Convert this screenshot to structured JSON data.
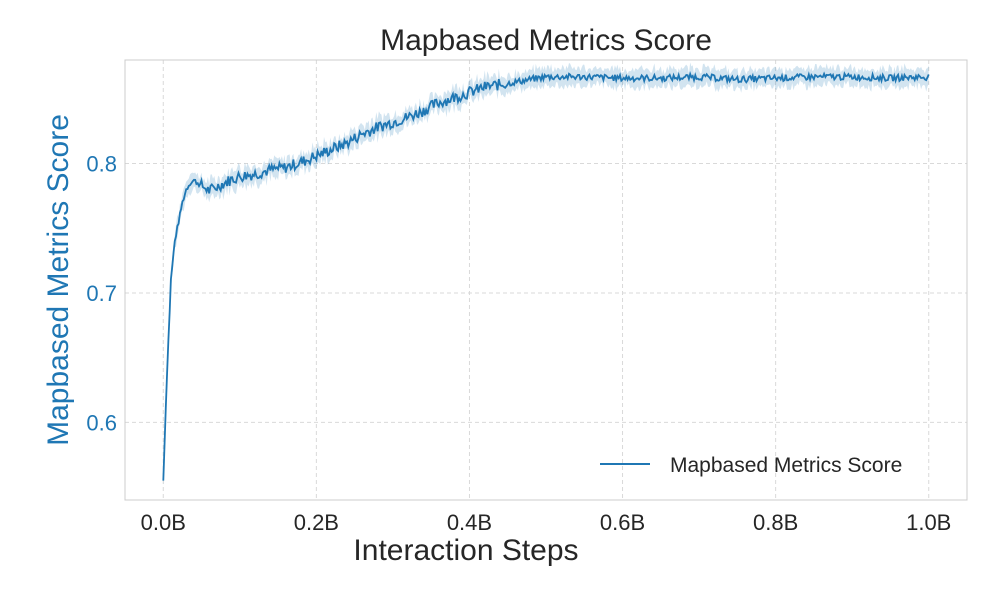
{
  "chart_data": {
    "type": "line",
    "title": "Mapbased Metrics Score",
    "xlabel": "Interaction Steps",
    "ylabel": "Mapbased Metrics Score",
    "xlim": [
      -0.05,
      1.05
    ],
    "ylim": [
      0.54,
      0.88
    ],
    "x_ticks": [
      0.0,
      0.2,
      0.4,
      0.6,
      0.8,
      1.0
    ],
    "x_tick_labels": [
      "0.0B",
      "0.2B",
      "0.4B",
      "0.6B",
      "0.8B",
      "1.0B"
    ],
    "y_ticks": [
      0.6,
      0.7,
      0.8
    ],
    "y_tick_labels": [
      "0.6",
      "0.7",
      "0.8"
    ],
    "grid": true,
    "legend": {
      "position": "lower-right",
      "entries": [
        "Mapbased Metrics Score"
      ]
    },
    "colors": {
      "line": "#1f77b4",
      "band": "#1f77b4",
      "ylabel": "#1f77b4"
    },
    "series": [
      {
        "name": "Mapbased Metrics Score",
        "x": [
          0.0,
          0.005,
          0.01,
          0.015,
          0.02,
          0.025,
          0.03,
          0.035,
          0.04,
          0.05,
          0.06,
          0.07,
          0.08,
          0.09,
          0.1,
          0.12,
          0.14,
          0.16,
          0.18,
          0.2,
          0.22,
          0.24,
          0.26,
          0.28,
          0.3,
          0.32,
          0.34,
          0.36,
          0.38,
          0.4,
          0.42,
          0.44,
          0.46,
          0.48,
          0.5,
          0.55,
          0.6,
          0.65,
          0.7,
          0.75,
          0.8,
          0.85,
          0.9,
          0.95,
          1.0
        ],
        "y": [
          0.555,
          0.64,
          0.71,
          0.74,
          0.755,
          0.77,
          0.78,
          0.785,
          0.787,
          0.783,
          0.779,
          0.782,
          0.785,
          0.788,
          0.79,
          0.792,
          0.795,
          0.797,
          0.801,
          0.806,
          0.811,
          0.816,
          0.823,
          0.828,
          0.832,
          0.836,
          0.841,
          0.847,
          0.851,
          0.855,
          0.859,
          0.861,
          0.863,
          0.865,
          0.867,
          0.867,
          0.866,
          0.866,
          0.867,
          0.865,
          0.866,
          0.867,
          0.867,
          0.866,
          0.867
        ],
        "band": 0.007
      }
    ]
  }
}
